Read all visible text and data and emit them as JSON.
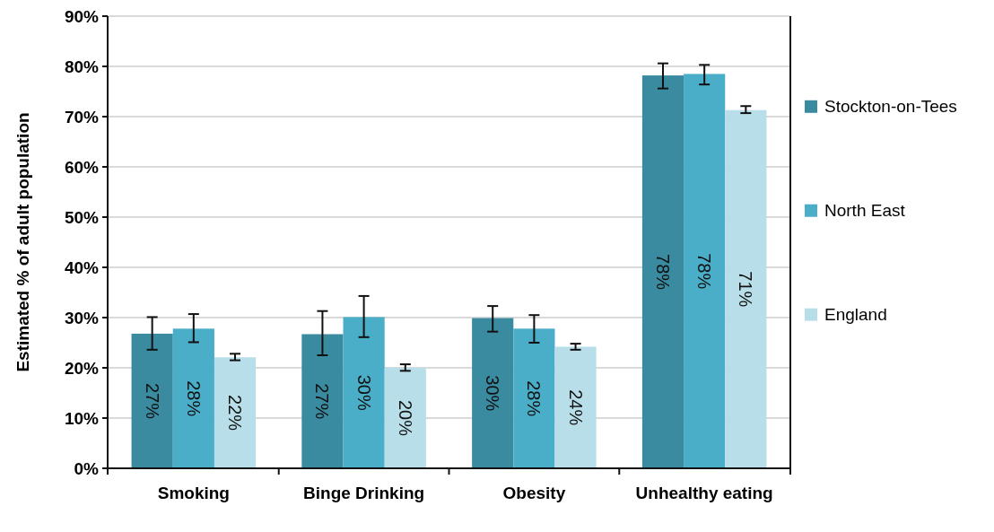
{
  "chart_data": {
    "type": "bar",
    "ylabel": "Estimated % of adult population",
    "categories": [
      "Smoking",
      "Binge Drinking",
      "Obesity",
      "Unhealthy eating"
    ],
    "series": [
      {
        "name": "Stockton-on-Tees",
        "color": "#3a8aa0",
        "values": [
          26.8,
          26.7,
          29.9,
          78.2
        ],
        "errors": [
          [
            23.6,
            30.1
          ],
          [
            22.5,
            31.3
          ],
          [
            27.2,
            32.3
          ],
          [
            75.6,
            80.6
          ]
        ],
        "value_labels": [
          "27%",
          "27%",
          "30%",
          "78%"
        ]
      },
      {
        "name": "North East",
        "color": "#4aaec8",
        "values": [
          27.8,
          30.1,
          27.8,
          78.5
        ],
        "errors": [
          [
            25.1,
            30.7
          ],
          [
            26.1,
            34.3
          ],
          [
            25.0,
            30.5
          ],
          [
            76.4,
            80.3
          ]
        ],
        "value_labels": [
          "28%",
          "30%",
          "28%",
          "78%"
        ]
      },
      {
        "name": "England",
        "color": "#b8dfe9",
        "values": [
          22.1,
          20.0,
          24.2,
          71.3
        ],
        "errors": [
          [
            21.5,
            22.8
          ],
          [
            19.4,
            20.7
          ],
          [
            23.6,
            24.8
          ],
          [
            70.7,
            72.1
          ]
        ],
        "value_labels": [
          "22%",
          "20%",
          "24%",
          "71%"
        ]
      }
    ],
    "ylim": [
      0,
      90
    ],
    "yticks": [
      {
        "value": 0,
        "label": "0%"
      },
      {
        "value": 10,
        "label": "10%"
      },
      {
        "value": 20,
        "label": "20%"
      },
      {
        "value": 30,
        "label": "30%"
      },
      {
        "value": 40,
        "label": "40%"
      },
      {
        "value": 50,
        "label": "50%"
      },
      {
        "value": 60,
        "label": "60%"
      },
      {
        "value": 70,
        "label": "70%"
      },
      {
        "value": 80,
        "label": "80%"
      },
      {
        "value": 90,
        "label": "90%"
      }
    ],
    "grid": "y",
    "legend": "right"
  }
}
